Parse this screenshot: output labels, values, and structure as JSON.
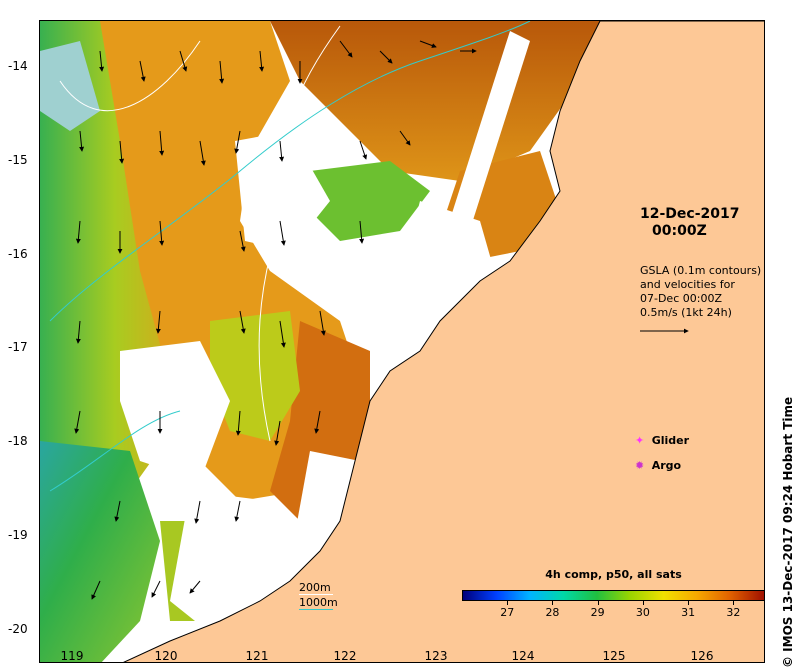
{
  "title": {
    "line1": "12-Dec-2017",
    "line2": "00:00Z"
  },
  "gsla_note": {
    "line1": "GSLA (0.1m contours)",
    "line2": "and velocities for",
    "line3": "07-Dec 00:00Z",
    "line4": "0.5m/s (1kt 24h)"
  },
  "legend": {
    "glider": "Glider",
    "argo": "Argo",
    "glider_color": "#ff33ff",
    "argo_color": "#cc33cc"
  },
  "depth_legend": {
    "line1": "200m",
    "line2": "1000m",
    "line1_color": "#ffffff",
    "line2_color": "#33cccc"
  },
  "colorbar": {
    "title": "4h comp, p50, all sats",
    "ticks": [
      "27",
      "28",
      "29",
      "30",
      "31",
      "32"
    ],
    "range": [
      26,
      32.7
    ]
  },
  "axes": {
    "lat_ticks": [
      "-14",
      "-15",
      "-16",
      "-17",
      "-18",
      "-19",
      "-20"
    ],
    "lon_ticks": [
      "119",
      "120",
      "121",
      "122",
      "123",
      "124",
      "125",
      "126"
    ]
  },
  "credit": "© IMOS 13-Dec-2017 09:24 Hobart Time",
  "colors": {
    "land": "#fdc896",
    "nodata": "#ffffff",
    "sst_hot": "#c65a0a",
    "sst_warm": "#e39a18",
    "sst_mid": "#c8c810",
    "sst_cool": "#30b040"
  }
}
